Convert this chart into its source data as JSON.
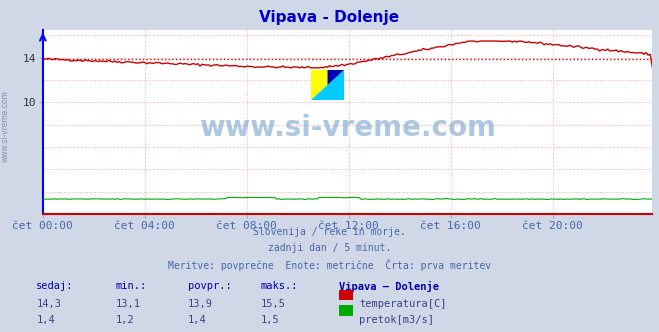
{
  "title": "Vipava - Dolenje",
  "title_color": "#0000cc",
  "bg_color": "#d0d8e8",
  "plot_bg_color": "#ffffff",
  "grid_color": "#ffaaaa",
  "text_color": "#4466aa",
  "watermark_text": "www.si-vreme.com",
  "watermark_color": "#6699cc",
  "watermark_alpha": 0.45,
  "subtitle_lines": [
    "Slovenija / reke in morje.",
    "zadnji dan / 5 minut.",
    "Meritve: povprečne  Enote: metrične  Črta: prva meritev"
  ],
  "xtick_labels": [
    "čet 00:00",
    "čet 04:00",
    "čet 08:00",
    "čet 12:00",
    "čet 16:00",
    "čet 20:00"
  ],
  "xtick_positions": [
    0,
    48,
    96,
    144,
    192,
    240
  ],
  "ylim": [
    0,
    16.5
  ],
  "xlim": [
    0,
    287
  ],
  "n_points": 288,
  "temp_avg": 13.9,
  "temp_color": "#cc0000",
  "flow_color": "#00aa00",
  "left_spine_color": "#0000ff",
  "bottom_spine_color": "#cc0000",
  "table_headers": [
    "sedaj:",
    "min.:",
    "povpr.:",
    "maks.:",
    "Vipava – Dolenje"
  ],
  "table_row1": [
    "14,3",
    "13,1",
    "13,9",
    "15,5"
  ],
  "table_row2": [
    "1,4",
    "1,2",
    "1,4",
    "1,5"
  ],
  "legend_label_temp": "temperatura[C]",
  "legend_label_flow": "pretok[m3/s]"
}
